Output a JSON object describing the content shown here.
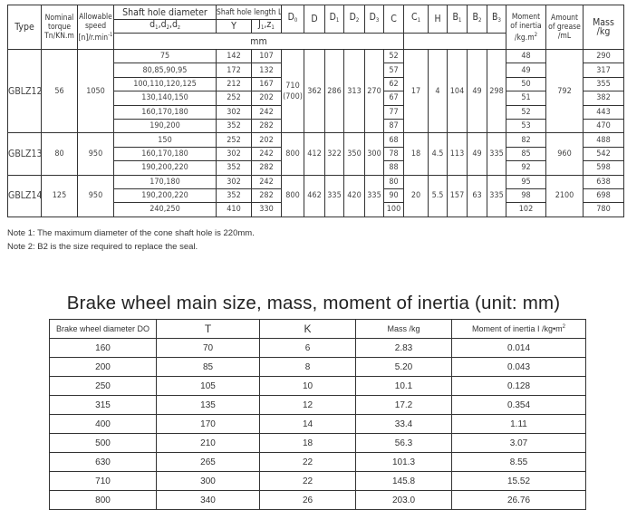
{
  "table1": {
    "headers": {
      "type": "Type",
      "torque": [
        "Nominal",
        "torque",
        "Tn/KN.m"
      ],
      "speed": [
        "Allowable",
        "speed",
        "[n]/r.min"
      ],
      "speed_sup": "-1",
      "shaft_dia": "Shaft hole diameter",
      "shaft_dia_sub": {
        "d": "d",
        "s1": "1",
        "s2": "2",
        "s3": "z"
      },
      "shaft_len": "Shaft hole length  L",
      "y": "Y",
      "j": {
        "j": "J",
        "j_sub": "1",
        "z": "z",
        "z_sub": "1"
      },
      "d0": {
        "text": "D",
        "sub": "0"
      },
      "d": "D",
      "d1": {
        "text": "D",
        "sub": "1"
      },
      "d2": {
        "text": "D",
        "sub": "2"
      },
      "d3": {
        "text": "D",
        "sub": "3"
      },
      "c": "C",
      "c1": {
        "text": "C",
        "sub": "1"
      },
      "h": "H",
      "b1": {
        "text": "B",
        "sub": "1"
      },
      "b2": {
        "text": "B",
        "sub": "2"
      },
      "b3": {
        "text": "B",
        "sub": "3"
      },
      "unit": "mm",
      "inertia": [
        "Moment",
        "of inertia",
        "/kg.m"
      ],
      "inertia_sup": "2",
      "grease": [
        "Amount",
        "of grease",
        "/mL"
      ],
      "mass": [
        "Mass",
        "/kg"
      ]
    },
    "groups": [
      {
        "type": "GBLZ12",
        "torque": "56",
        "speed": "1050",
        "d0": "710\n(700)",
        "d": "362",
        "d1": "286",
        "d2": "313",
        "d3": "270",
        "c1": "17",
        "h": "4",
        "b1": "104",
        "b2": "49",
        "b3": "298",
        "grease": "792",
        "rows": [
          {
            "dia": "75",
            "y": "142",
            "j": "107",
            "c": "52",
            "inertia": "48",
            "mass": "290"
          },
          {
            "dia": "80,85,90,95",
            "y": "172",
            "j": "132",
            "c": "57",
            "inertia": "49",
            "mass": "317"
          },
          {
            "dia": "100,110,120,125",
            "y": "212",
            "j": "167",
            "c": "62",
            "inertia": "50",
            "mass": "355"
          },
          {
            "dia": "130,140,150",
            "y": "252",
            "j": "202",
            "c": "67",
            "inertia": "51",
            "mass": "382"
          },
          {
            "dia": "160,170,180",
            "y": "302",
            "j": "242",
            "c": "77",
            "inertia": "52",
            "mass": "443"
          },
          {
            "dia": "190,200",
            "y": "352",
            "j": "282",
            "c": "87",
            "inertia": "53",
            "mass": "470"
          }
        ]
      },
      {
        "type": "GBLZ13",
        "torque": "80",
        "speed": "950",
        "d0": "800",
        "d": "412",
        "d1": "322",
        "d2": "350",
        "d3": "300",
        "c1": "18",
        "h": "4.5",
        "b1": "113",
        "b2": "49",
        "b3": "335",
        "grease": "960",
        "rows": [
          {
            "dia": "150",
            "y": "252",
            "j": "202",
            "c": "68",
            "inertia": "82",
            "mass": "488"
          },
          {
            "dia": "160,170,180",
            "y": "302",
            "j": "242",
            "c": "78",
            "inertia": "85",
            "mass": "542"
          },
          {
            "dia": "190,200,220",
            "y": "352",
            "j": "282",
            "c": "88",
            "inertia": "92",
            "mass": "598"
          }
        ]
      },
      {
        "type": "GBLZ14",
        "torque": "125",
        "speed": "950",
        "d0": "800",
        "d": "462",
        "d1": "335",
        "d2": "420",
        "d3": "335",
        "c1": "20",
        "h": "5.5",
        "b1": "157",
        "b2": "63",
        "b3": "335",
        "grease": "2100",
        "rows": [
          {
            "dia": "170,180",
            "y": "302",
            "j": "242",
            "c": "80",
            "inertia": "95",
            "mass": "638"
          },
          {
            "dia": "190,200,220",
            "y": "352",
            "j": "282",
            "c": "90",
            "inertia": "98",
            "mass": "698"
          },
          {
            "dia": "240,250",
            "y": "410",
            "j": "330",
            "c": "100",
            "inertia": "102",
            "mass": "780"
          }
        ]
      }
    ],
    "notes": [
      "Note 1: The maximum diameter of the cone shaft hole is 220mm.",
      "Note 2: B2 is the size required to replace the seal."
    ]
  },
  "table2": {
    "title": "Brake wheel main size, mass, moment of inertia (unit: mm)",
    "headers": [
      "Brake wheel diameter DO",
      "T",
      "K",
      "Mass /kg",
      "Moment of inertia  I /kg•m"
    ],
    "inertia_sup": "2",
    "rows": [
      [
        "160",
        "70",
        "6",
        "2.83",
        "0.014"
      ],
      [
        "200",
        "85",
        "8",
        "5.20",
        "0.043"
      ],
      [
        "250",
        "105",
        "10",
        "10.1",
        "0.128"
      ],
      [
        "315",
        "135",
        "12",
        "17.2",
        "0.354"
      ],
      [
        "400",
        "170",
        "14",
        "33.4",
        "1.11"
      ],
      [
        "500",
        "210",
        "18",
        "56.3",
        "3.07"
      ],
      [
        "630",
        "265",
        "22",
        "101.3",
        "8.55"
      ],
      [
        "710",
        "300",
        "22",
        "145.8",
        "15.52"
      ],
      [
        "800",
        "340",
        "26",
        "203.0",
        "26.76"
      ]
    ]
  }
}
